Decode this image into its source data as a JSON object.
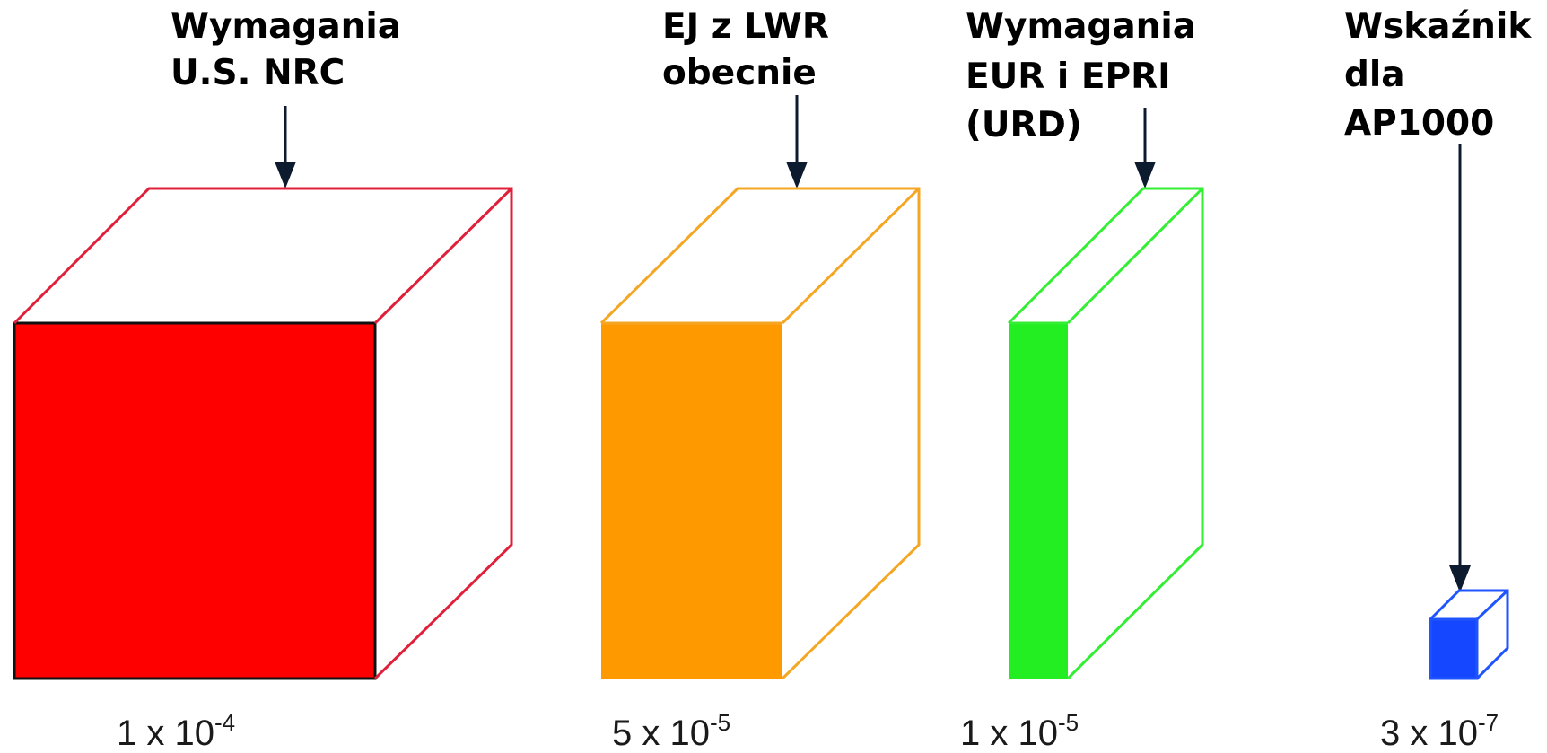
{
  "items": [
    {
      "label_lines": [
        "Wymagania",
        "U.S. NRC"
      ],
      "value": {
        "mantissa": "1 x 10",
        "exponent": "-4"
      },
      "color": "#ff0000",
      "edge_color": "#e0203a",
      "icon": "cube-icon"
    },
    {
      "label_lines": [
        "EJ z LWR",
        "obecnie"
      ],
      "value": {
        "mantissa": "5 x 10",
        "exponent": "-5"
      },
      "color": "#ff9900",
      "edge_color": "#f5a623",
      "icon": "slab-icon"
    },
    {
      "label_lines": [
        "Wymagania",
        "EUR i EPRI",
        "(URD)"
      ],
      "value": {
        "mantissa": "1 x 10",
        "exponent": "-5"
      },
      "color": "#22ee22",
      "edge_color": "#33ee33",
      "icon": "thin-slab-icon"
    },
    {
      "label_lines": [
        "Wskaźnik",
        "dla",
        "AP1000"
      ],
      "value": {
        "mantissa": "3 x 10",
        "exponent": "-7"
      },
      "color": "#1447ff",
      "edge_color": "#1f55ff",
      "icon": "small-cube-icon"
    }
  ]
}
